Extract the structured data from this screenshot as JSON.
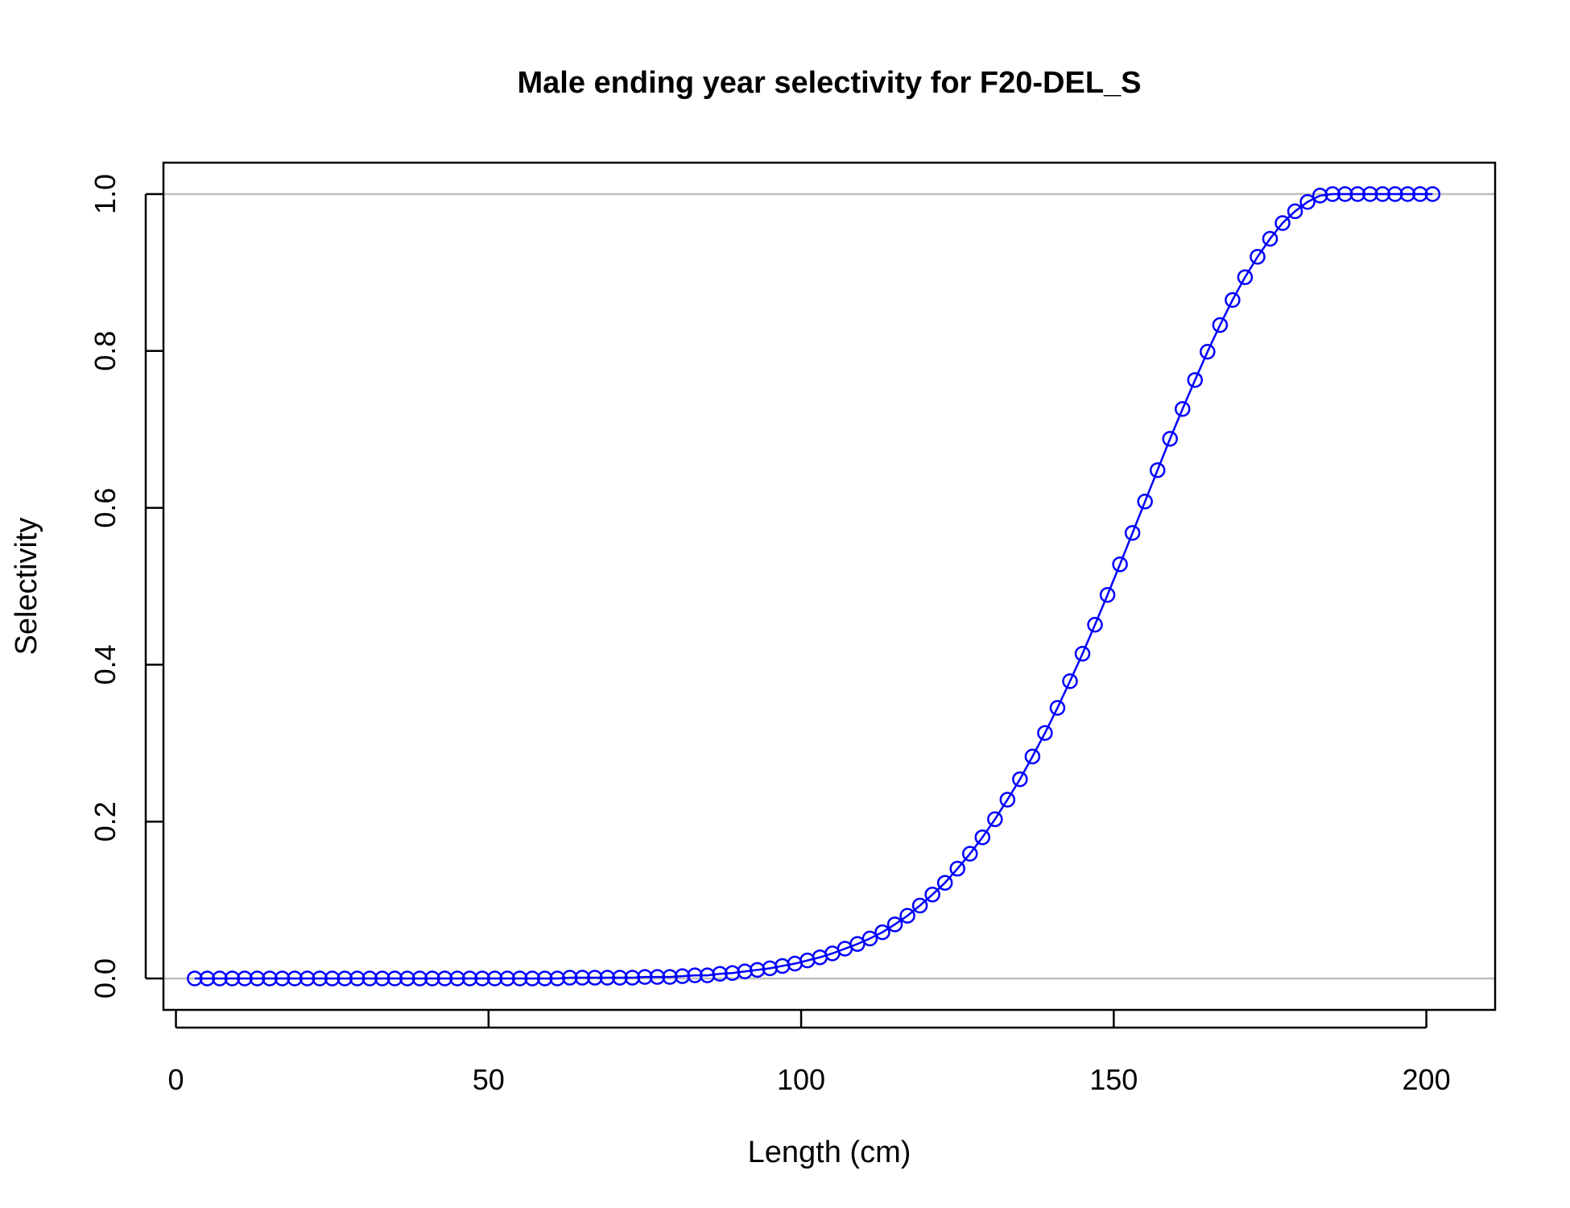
{
  "chart_data": {
    "type": "line",
    "title": "Male ending year selectivity for F20-DEL_S",
    "xlabel": "Length (cm)",
    "ylabel": "Selectivity",
    "xlim": [
      -2,
      211
    ],
    "ylim": [
      -0.04,
      1.04
    ],
    "x_ticks": [
      0,
      50,
      100,
      150,
      200
    ],
    "y_ticks": [
      0.0,
      0.2,
      0.4,
      0.6,
      0.8,
      1.0
    ],
    "x_tick_labels": [
      "0",
      "50",
      "100",
      "150",
      "200"
    ],
    "y_tick_labels": [
      "0.0",
      "0.2",
      "0.4",
      "0.6",
      "0.8",
      "1.0"
    ],
    "reference_lines_y": [
      0,
      1
    ],
    "reference_line_color": "#bebebe",
    "series_color": "#0000ff",
    "grid": false,
    "x": [
      3,
      5,
      7,
      9,
      11,
      13,
      15,
      17,
      19,
      21,
      23,
      25,
      27,
      29,
      31,
      33,
      35,
      37,
      39,
      41,
      43,
      45,
      47,
      49,
      51,
      53,
      55,
      57,
      59,
      61,
      63,
      65,
      67,
      69,
      71,
      73,
      75,
      77,
      79,
      81,
      83,
      85,
      87,
      89,
      91,
      93,
      95,
      97,
      99,
      101,
      103,
      105,
      107,
      109,
      111,
      113,
      115,
      117,
      119,
      121,
      123,
      125,
      127,
      129,
      131,
      133,
      135,
      137,
      139,
      141,
      143,
      145,
      147,
      149,
      151,
      153,
      155,
      157,
      159,
      161,
      163,
      165,
      167,
      169,
      171,
      173,
      175,
      177,
      179,
      181,
      183,
      185,
      187,
      189,
      191,
      193,
      195,
      197,
      199,
      201
    ],
    "y": [
      0,
      0,
      0,
      0,
      0,
      0,
      0,
      0,
      0,
      0,
      0,
      0,
      0,
      0,
      0,
      0,
      0,
      0,
      0,
      0,
      0,
      0,
      0,
      0,
      0,
      0,
      0,
      0,
      0,
      0,
      0.001,
      0.001,
      0.001,
      0.001,
      0.001,
      0.001,
      0.002,
      0.002,
      0.002,
      0.003,
      0.004,
      0.004,
      0.006,
      0.007,
      0.009,
      0.011,
      0.013,
      0.016,
      0.019,
      0.023,
      0.027,
      0.032,
      0.038,
      0.044,
      0.051,
      0.059,
      0.069,
      0.08,
      0.093,
      0.107,
      0.122,
      0.14,
      0.159,
      0.18,
      0.203,
      0.228,
      0.254,
      0.283,
      0.313,
      0.345,
      0.379,
      0.414,
      0.451,
      0.489,
      0.528,
      0.568,
      0.608,
      0.648,
      0.688,
      0.726,
      0.763,
      0.799,
      0.833,
      0.865,
      0.894,
      0.92,
      0.943,
      0.963,
      0.978,
      0.99,
      0.998,
      1,
      1,
      1,
      1,
      1,
      1,
      1,
      1,
      1
    ]
  }
}
